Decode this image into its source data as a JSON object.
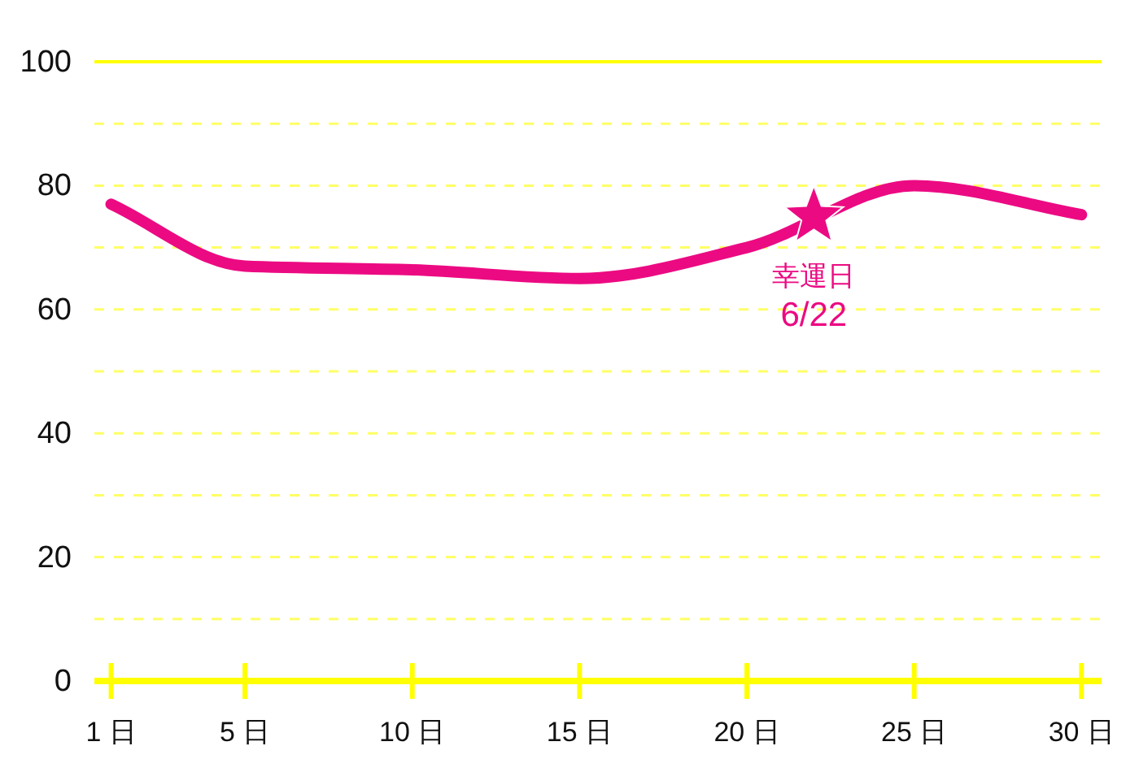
{
  "chart_data": {
    "type": "line",
    "x": [
      1,
      5,
      10,
      15,
      20,
      25,
      30
    ],
    "series": [
      {
        "color": "#ec0a82",
        "values": [
          77,
          67,
          66.4,
          65,
          70,
          80,
          75.3
        ]
      },
      {
        "type": "scatter",
        "marker": "star",
        "color": "#ec0a82",
        "x": [
          22
        ],
        "values": [
          75
        ]
      }
    ],
    "annotations": [
      {
        "text": "幸運日\n6/22",
        "x": 22,
        "y": 75
      }
    ],
    "xlim": [
      0.5,
      30.6
    ],
    "xticks": [
      {
        "value": 1,
        "label": "1 日"
      },
      {
        "value": 5,
        "label": "5 日"
      },
      {
        "value": 10,
        "label": "10 日"
      },
      {
        "value": 15,
        "label": "15 日"
      },
      {
        "value": 20,
        "label": "20 日"
      },
      {
        "value": 25,
        "label": "25 日"
      },
      {
        "value": 30,
        "label": "30 日"
      }
    ],
    "ylim": [
      0,
      100
    ],
    "yticks": [
      0,
      {
        "value": 10,
        "label": null
      },
      20,
      {
        "value": 30,
        "label": null
      },
      40,
      {
        "value": 50,
        "label": null
      },
      60,
      {
        "value": 70,
        "label": null
      },
      80,
      {
        "value": 90,
        "label": null
      },
      100
    ],
    "grid": "y",
    "marker": "none",
    "line_style": "solid"
  }
}
